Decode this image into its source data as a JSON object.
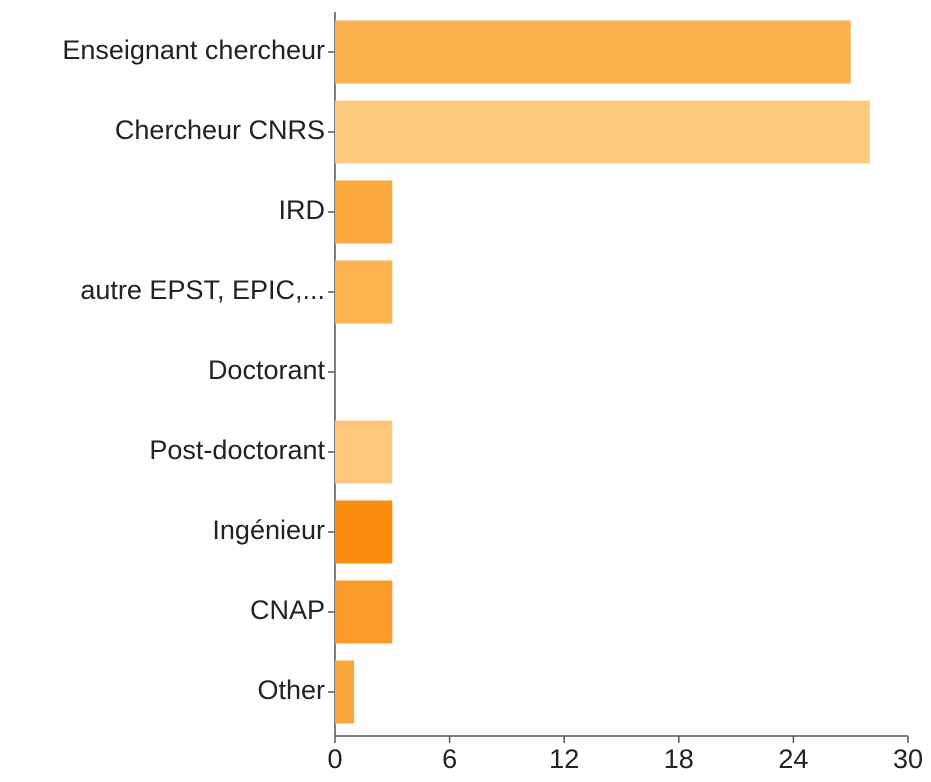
{
  "chart_data": {
    "type": "bar",
    "orientation": "horizontal",
    "categories": [
      "Enseignant chercheur",
      "Chercheur CNRS",
      "IRD",
      "autre EPST, EPIC,...",
      "Doctorant",
      "Post-doctorant",
      "Ingénieur",
      "CNAP",
      "Other"
    ],
    "values": [
      27,
      28,
      3,
      3,
      0,
      3,
      3,
      3,
      1
    ],
    "colors": [
      "#fbb04e",
      "#fdc97f",
      "#fba93e",
      "#fbb450",
      "#fbb450",
      "#fdc77c",
      "#fb8c0e",
      "#fb9a28",
      "#fba63a"
    ],
    "xlim": [
      0,
      30
    ],
    "xticks": [
      0,
      6,
      12,
      18,
      24,
      30
    ],
    "grid": false
  }
}
